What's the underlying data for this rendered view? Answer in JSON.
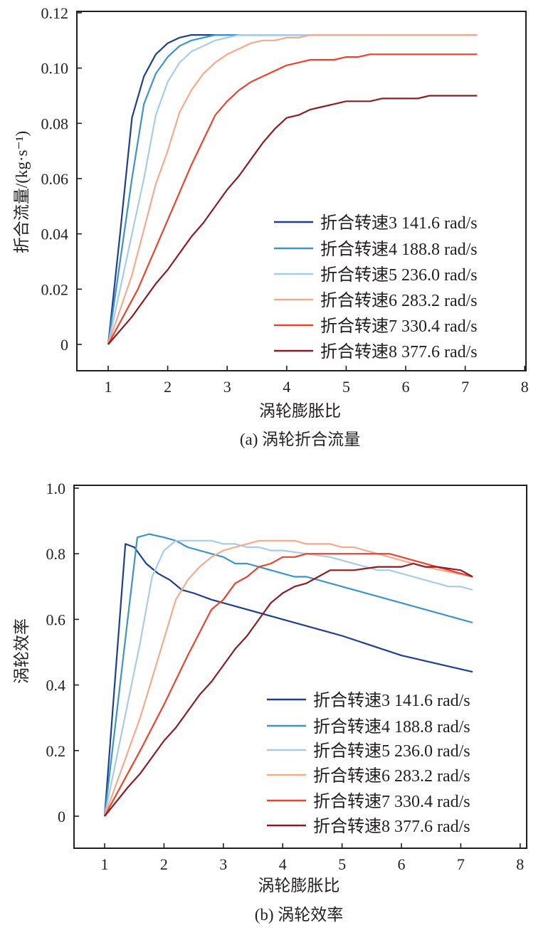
{
  "chart_data": [
    {
      "type": "line",
      "caption": "(a) 涡轮折合流量",
      "xlabel": "涡轮膨胀比",
      "ylabel": "折合流量/(kg·s⁻¹)",
      "xlim": [
        0.5,
        8
      ],
      "ylim": [
        -0.01,
        0.12
      ],
      "xticks": [
        "1",
        "2",
        "3",
        "4",
        "5",
        "6",
        "7",
        "8"
      ],
      "yticks": [
        "0",
        "0.02",
        "0.04",
        "0.06",
        "0.08",
        "0.10",
        "0.12"
      ],
      "legend_position": "bottom-right",
      "series": [
        {
          "name": "折合转速3 141.6 rad/s",
          "color": "#1f3f8f",
          "x": [
            1,
            1.2,
            1.4,
            1.6,
            1.8,
            2.0,
            2.2,
            2.4,
            2.8,
            7.2
          ],
          "y": [
            0,
            0.04,
            0.082,
            0.097,
            0.105,
            0.109,
            0.111,
            0.112,
            0.112,
            0.112
          ]
        },
        {
          "name": "折合转速4 188.8 rad/s",
          "color": "#3a95c8",
          "x": [
            1,
            1.4,
            1.6,
            1.8,
            2.0,
            2.2,
            2.4,
            2.6,
            2.8,
            7.2
          ],
          "y": [
            0,
            0.06,
            0.087,
            0.098,
            0.104,
            0.108,
            0.11,
            0.111,
            0.112,
            0.112
          ]
        },
        {
          "name": "折合转速5 236.0 rad/s",
          "color": "#a8cce6",
          "x": [
            1,
            1.6,
            1.8,
            2.0,
            2.2,
            2.4,
            2.6,
            2.8,
            3.0,
            3.2,
            7.2
          ],
          "y": [
            0,
            0.06,
            0.083,
            0.095,
            0.102,
            0.106,
            0.108,
            0.11,
            0.111,
            0.112,
            0.112
          ]
        },
        {
          "name": "折合转速6 283.2 rad/s",
          "color": "#f7a98b",
          "x": [
            1,
            1.4,
            1.8,
            2.0,
            2.2,
            2.4,
            2.6,
            2.8,
            3.0,
            3.2,
            3.4,
            3.6,
            3.8,
            4.0,
            4.2,
            4.4,
            7.2
          ],
          "y": [
            0,
            0.025,
            0.058,
            0.07,
            0.084,
            0.092,
            0.098,
            0.102,
            0.105,
            0.107,
            0.109,
            0.11,
            0.11,
            0.111,
            0.111,
            0.112,
            0.112
          ]
        },
        {
          "name": "折合转速7 330.4 rad/s",
          "color": "#ec4330",
          "x": [
            1,
            1.5,
            2.0,
            2.4,
            2.8,
            3.0,
            3.2,
            3.4,
            3.6,
            3.8,
            4.0,
            4.2,
            4.4,
            4.8,
            5.0,
            5.2,
            5.4,
            7.2
          ],
          "y": [
            0,
            0.02,
            0.045,
            0.065,
            0.083,
            0.088,
            0.092,
            0.095,
            0.097,
            0.099,
            0.101,
            0.102,
            0.103,
            0.103,
            0.104,
            0.104,
            0.105,
            0.105
          ]
        },
        {
          "name": "折合转速8 377.6 rad/s",
          "color": "#8b1e22",
          "x": [
            1,
            1.4,
            1.8,
            2.0,
            2.4,
            2.6,
            3.0,
            3.2,
            3.4,
            3.6,
            3.8,
            4.0,
            4.2,
            4.4,
            4.6,
            4.8,
            5.0,
            5.4,
            5.6,
            6.2,
            6.4,
            7.2
          ],
          "y": [
            0,
            0.01,
            0.022,
            0.027,
            0.039,
            0.044,
            0.056,
            0.061,
            0.067,
            0.073,
            0.078,
            0.082,
            0.083,
            0.085,
            0.086,
            0.087,
            0.088,
            0.088,
            0.089,
            0.089,
            0.09,
            0.09
          ]
        }
      ]
    },
    {
      "type": "line",
      "caption": "(b) 涡轮效率",
      "xlabel": "涡轮膨胀比",
      "ylabel": "涡轮效率",
      "xlim": [
        0.5,
        8
      ],
      "ylim": [
        -0.12,
        1.0
      ],
      "xticks": [
        "1",
        "2",
        "3",
        "4",
        "5",
        "6",
        "7",
        "8"
      ],
      "yticks": [
        "0",
        "0.2",
        "0.4",
        "0.6",
        "0.8",
        "1.0"
      ],
      "legend_position": "bottom-right",
      "series": [
        {
          "name": "折合转速3 141.6 rad/s",
          "color": "#1f3f8f",
          "x": [
            1,
            1.35,
            1.5,
            1.7,
            1.9,
            2.1,
            2.3,
            2.5,
            2.8,
            3.0,
            4.0,
            5.0,
            6.0,
            7.2
          ],
          "y": [
            0,
            0.83,
            0.82,
            0.77,
            0.74,
            0.72,
            0.69,
            0.68,
            0.66,
            0.65,
            0.6,
            0.55,
            0.49,
            0.44
          ]
        },
        {
          "name": "折合转速4 188.8 rad/s",
          "color": "#3a95c8",
          "x": [
            1,
            1.55,
            1.75,
            2.0,
            2.2,
            2.4,
            2.8,
            3.0,
            3.2,
            3.4,
            4.0,
            4.2,
            4.4,
            5.0,
            6.0,
            7.2
          ],
          "y": [
            0,
            0.85,
            0.86,
            0.85,
            0.84,
            0.82,
            0.8,
            0.79,
            0.77,
            0.77,
            0.74,
            0.73,
            0.73,
            0.7,
            0.65,
            0.59
          ]
        },
        {
          "name": "折合转速5 236.0 rad/s",
          "color": "#a8cce6",
          "x": [
            1,
            1.6,
            1.8,
            2.0,
            2.2,
            2.8,
            3.0,
            3.2,
            3.4,
            3.6,
            3.8,
            4.0,
            4.4,
            4.8,
            5.0,
            5.6,
            5.8,
            6.8,
            7.0,
            7.2
          ],
          "y": [
            0,
            0.53,
            0.73,
            0.81,
            0.84,
            0.84,
            0.83,
            0.83,
            0.82,
            0.82,
            0.81,
            0.81,
            0.8,
            0.79,
            0.78,
            0.75,
            0.75,
            0.7,
            0.7,
            0.69
          ]
        },
        {
          "name": "折合转速6 283.2 rad/s",
          "color": "#f7a98b",
          "x": [
            1,
            1.6,
            2.0,
            2.2,
            2.4,
            2.6,
            2.8,
            3.0,
            3.2,
            3.6,
            4.2,
            4.4,
            4.8,
            5.0,
            5.2,
            5.6,
            6.0,
            6.4,
            7.2
          ],
          "y": [
            0,
            0.3,
            0.54,
            0.66,
            0.72,
            0.76,
            0.79,
            0.81,
            0.82,
            0.84,
            0.84,
            0.83,
            0.83,
            0.82,
            0.82,
            0.8,
            0.78,
            0.76,
            0.73
          ]
        },
        {
          "name": "折合转速7 330.4 rad/s",
          "color": "#ec4330",
          "x": [
            1,
            1.6,
            2.0,
            2.4,
            2.8,
            3.0,
            3.2,
            3.4,
            3.6,
            3.8,
            4.0,
            4.2,
            4.4,
            5.8,
            6.2,
            6.6,
            7.2
          ],
          "y": [
            0,
            0.2,
            0.34,
            0.49,
            0.63,
            0.66,
            0.71,
            0.73,
            0.76,
            0.77,
            0.79,
            0.79,
            0.8,
            0.8,
            0.78,
            0.76,
            0.73
          ]
        },
        {
          "name": "折合转速8 377.6 rad/s",
          "color": "#8b1e22",
          "x": [
            1,
            1.4,
            1.6,
            2.0,
            2.2,
            2.6,
            2.8,
            3.2,
            3.4,
            3.6,
            3.8,
            4.0,
            4.2,
            4.4,
            4.6,
            4.8,
            5.2,
            5.6,
            6.0,
            6.2,
            6.4,
            6.6,
            7.0,
            7.2
          ],
          "y": [
            0,
            0.09,
            0.13,
            0.23,
            0.27,
            0.37,
            0.41,
            0.51,
            0.55,
            0.6,
            0.65,
            0.68,
            0.7,
            0.71,
            0.73,
            0.75,
            0.75,
            0.76,
            0.76,
            0.77,
            0.76,
            0.76,
            0.75,
            0.73
          ]
        }
      ]
    }
  ]
}
